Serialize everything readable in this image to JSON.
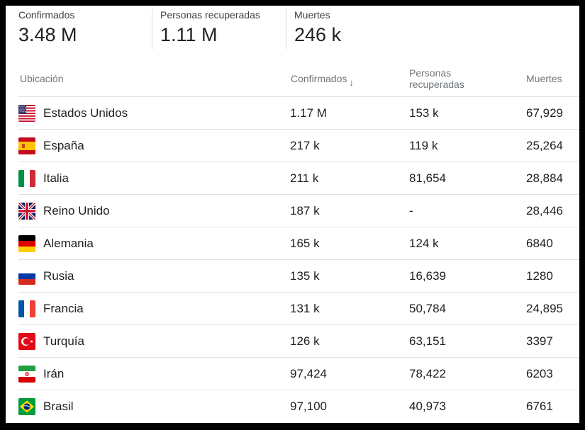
{
  "summary": {
    "confirmed": {
      "label": "Confirmados",
      "value": "3.48 M"
    },
    "recovered": {
      "label": "Personas recuperadas",
      "value": "1.11 M"
    },
    "deaths": {
      "label": "Muertes",
      "value": "246 k"
    }
  },
  "table": {
    "headers": {
      "location": "Ubicación",
      "confirmed": "Confirmados",
      "sort_indicator": "↓",
      "recovered": "Personas recuperadas",
      "deaths": "Muertes"
    },
    "rows": [
      {
        "country": "Estados Unidos",
        "flag": "us-flag-icon",
        "confirmed": "1.17 M",
        "recovered": "153 k",
        "deaths": "67,929"
      },
      {
        "country": "España",
        "flag": "spain-flag-icon",
        "confirmed": "217 k",
        "recovered": "119 k",
        "deaths": "25,264"
      },
      {
        "country": "Italia",
        "flag": "italy-flag-icon",
        "confirmed": "211 k",
        "recovered": "81,654",
        "deaths": "28,884"
      },
      {
        "country": "Reino Unido",
        "flag": "uk-flag-icon",
        "confirmed": "187 k",
        "recovered": "-",
        "deaths": "28,446"
      },
      {
        "country": "Alemania",
        "flag": "germany-flag-icon",
        "confirmed": "165 k",
        "recovered": "124 k",
        "deaths": "6840"
      },
      {
        "country": "Rusia",
        "flag": "russia-flag-icon",
        "confirmed": "135 k",
        "recovered": "16,639",
        "deaths": "1280"
      },
      {
        "country": "Francia",
        "flag": "france-flag-icon",
        "confirmed": "131 k",
        "recovered": "50,784",
        "deaths": "24,895"
      },
      {
        "country": "Turquía",
        "flag": "turkey-flag-icon",
        "confirmed": "126 k",
        "recovered": "63,151",
        "deaths": "3397"
      },
      {
        "country": "Irán",
        "flag": "iran-flag-icon",
        "confirmed": "97,424",
        "recovered": "78,422",
        "deaths": "6203"
      },
      {
        "country": "Brasil",
        "flag": "brazil-flag-icon",
        "confirmed": "97,100",
        "recovered": "40,973",
        "deaths": "6761"
      }
    ]
  },
  "colors": {
    "text": "#202124",
    "muted": "#70757a",
    "divider": "#e0e0e0"
  }
}
